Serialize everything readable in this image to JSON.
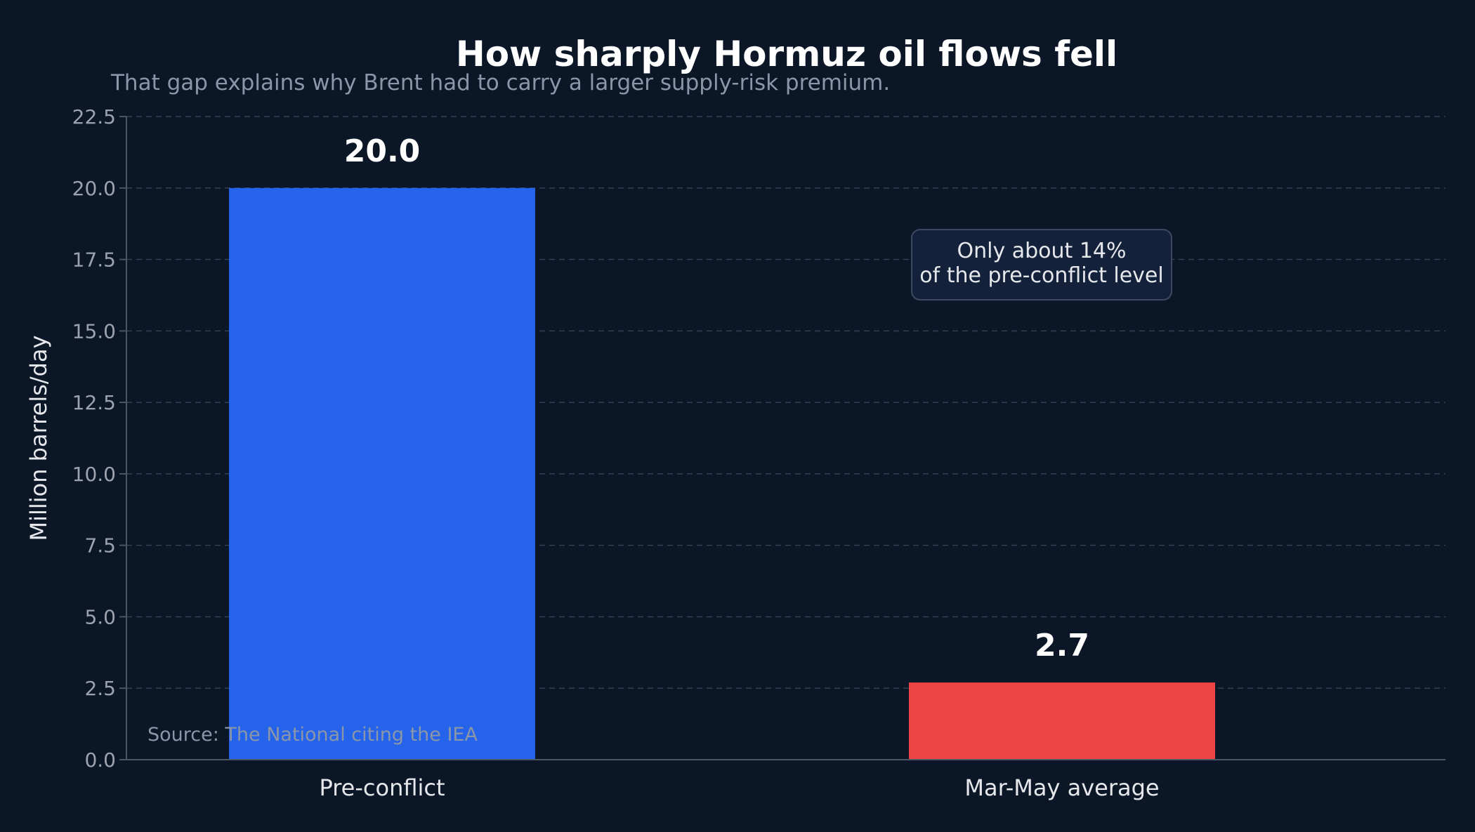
{
  "chart_data": {
    "type": "bar",
    "title": "How sharply Hormuz oil flows fell",
    "subtitle": "That gap explains why Brent had to carry a larger supply-risk premium.",
    "xlabel": "",
    "ylabel": "Million barrels/day",
    "categories": [
      "Pre-conflict",
      "Mar-May average"
    ],
    "values": [
      20.0,
      2.7
    ],
    "value_labels": [
      "20.0",
      "2.7"
    ],
    "bar_colors": [
      "#2563eb",
      "#ef4444"
    ],
    "ylim": [
      0,
      22.5
    ],
    "yticks": [
      0,
      2.5,
      5,
      7.5,
      10,
      12.5,
      15,
      17.5,
      20,
      22.5
    ],
    "ytick_labels": [
      "0.0",
      "2.5",
      "5.0",
      "7.5",
      "10.0",
      "12.5",
      "15.0",
      "17.5",
      "20.0",
      "22.5"
    ],
    "grid": true,
    "annotation": {
      "lines": [
        "Only about 14%",
        "of the pre-conflict level"
      ]
    },
    "source": "Source: The National citing the IEA"
  },
  "colors": {
    "background": "#0b1627",
    "grid": "#334155",
    "axis": "#4b5563",
    "tick_text": "#9ca3af",
    "title_text": "#ffffff",
    "subtitle_text": "#8b97a8",
    "annotation_bg": "#13223a",
    "annotation_border": "#3b4a60"
  }
}
